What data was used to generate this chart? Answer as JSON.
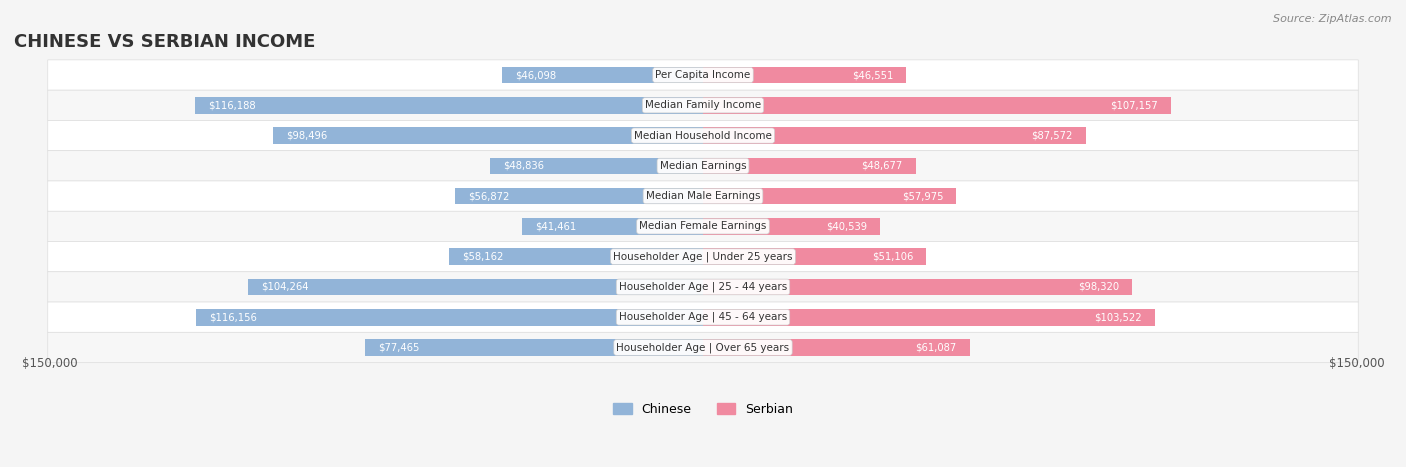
{
  "title": "CHINESE VS SERBIAN INCOME",
  "source": "Source: ZipAtlas.com",
  "max_value": 150000,
  "categories": [
    "Per Capita Income",
    "Median Family Income",
    "Median Household Income",
    "Median Earnings",
    "Median Male Earnings",
    "Median Female Earnings",
    "Householder Age | Under 25 years",
    "Householder Age | 25 - 44 years",
    "Householder Age | 45 - 64 years",
    "Householder Age | Over 65 years"
  ],
  "chinese_values": [
    46098,
    116188,
    98496,
    48836,
    56872,
    41461,
    58162,
    104264,
    116156,
    77465
  ],
  "serbian_values": [
    46551,
    107157,
    87572,
    48677,
    57975,
    40539,
    51106,
    98320,
    103522,
    61087
  ],
  "chinese_labels": [
    "$46,098",
    "$116,188",
    "$98,496",
    "$48,836",
    "$56,872",
    "$41,461",
    "$58,162",
    "$104,264",
    "$116,156",
    "$77,465"
  ],
  "serbian_labels": [
    "$46,551",
    "$107,157",
    "$87,572",
    "$48,677",
    "$57,975",
    "$40,539",
    "$51,106",
    "$98,320",
    "$103,522",
    "$61,087"
  ],
  "chinese_color": "#92b4d8",
  "serbian_color": "#f08aa0",
  "chinese_label_color_normal": "#555555",
  "chinese_label_color_bold": "#ffffff",
  "serbian_label_color_normal": "#555555",
  "serbian_label_color_bold": "#ffffff",
  "bg_color": "#f5f5f5",
  "row_bg_color": "#ffffff",
  "row_alt_bg_color": "#f0f0f0",
  "legend_chinese": "Chinese",
  "legend_serbian": "Serbian",
  "bar_height": 0.55,
  "x_label_left": "$150,000",
  "x_label_right": "$150,000"
}
